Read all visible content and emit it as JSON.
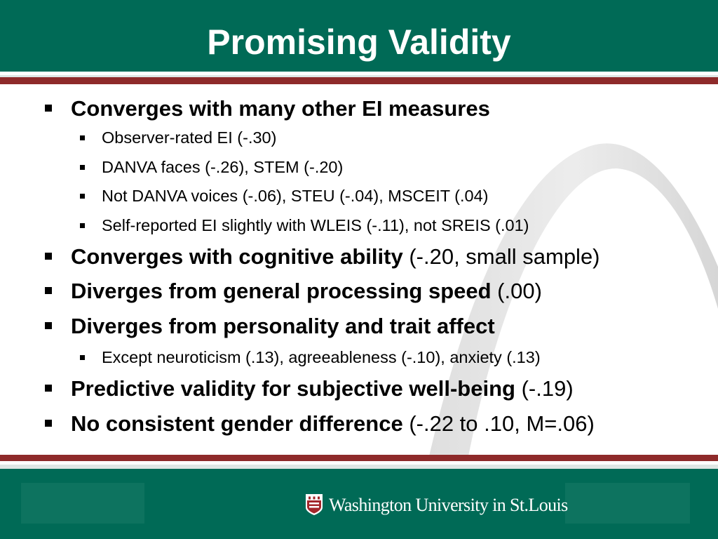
{
  "slide": {
    "title": "Promising Validity",
    "colors": {
      "header_green": "#006a56",
      "accent_red": "#8e2a2a",
      "text": "#000000"
    },
    "bullets": [
      {
        "level": 1,
        "bold": "Converges with many other EI measures",
        "rest": ""
      },
      {
        "level": 2,
        "bold": "",
        "rest": "Observer-rated EI (-.30)"
      },
      {
        "level": 2,
        "bold": "",
        "rest": "DANVA faces (-.26), STEM (-.20)"
      },
      {
        "level": 2,
        "bold": "",
        "rest": "Not DANVA voices (-.06), STEU (-.04), MSCEIT (.04)"
      },
      {
        "level": 2,
        "bold": "",
        "rest": "Self-reported EI slightly with WLEIS (-.11), not SREIS (.01)"
      },
      {
        "level": 1,
        "bold": "Converges with cognitive ability",
        "rest": " (-.20, small sample)"
      },
      {
        "level": 1,
        "bold": "Diverges from general processing speed",
        "rest": " (.00)"
      },
      {
        "level": 1,
        "bold": "Diverges from personality and trait affect",
        "rest": ""
      },
      {
        "level": 2,
        "bold": "",
        "rest": "Except neuroticism (.13), agreeableness (-.10), anxiety (.13)"
      },
      {
        "level": 1,
        "bold": "Predictive validity for subjective well-being",
        "rest": " (-.19)"
      },
      {
        "level": 1,
        "bold": "No consistent gender difference",
        "rest": " (-.22 to .10, M=.06)"
      }
    ],
    "footer": {
      "logo_text": "Washington University in St.Louis",
      "logo_icon": "university-seal-icon"
    }
  }
}
